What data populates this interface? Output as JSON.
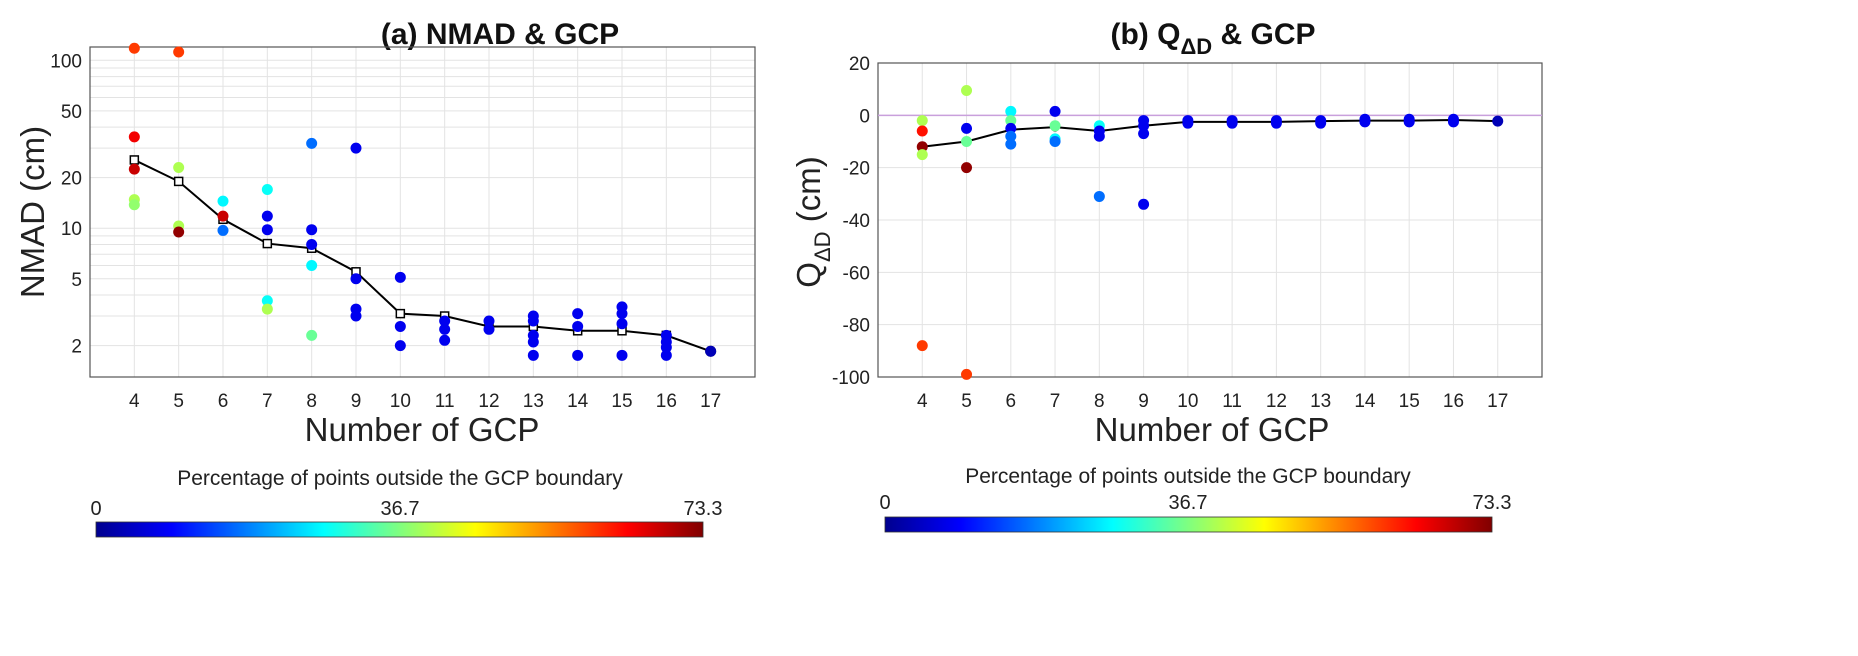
{
  "chart_data": [
    {
      "type": "scatter",
      "title": "(a) NMAD & GCP",
      "xlabel": "Number of GCP",
      "ylabel": "NMAD (cm)",
      "yscale": "log",
      "xlim": [
        3,
        18
      ],
      "ylim": [
        1.3,
        120
      ],
      "xticks": [
        "4",
        "5",
        "6",
        "7",
        "8",
        "9",
        "10",
        "11",
        "12",
        "13",
        "14",
        "15",
        "16",
        "17"
      ],
      "yticks": [
        "2",
        "5",
        "10",
        "20",
        "50",
        "100"
      ],
      "grid": true,
      "points": [
        {
          "x": 4,
          "y": 118,
          "c": 60
        },
        {
          "x": 4,
          "y": 35,
          "c": 65
        },
        {
          "x": 4,
          "y": 22.5,
          "c": 68
        },
        {
          "x": 4,
          "y": 14.8,
          "c": 40
        },
        {
          "x": 4,
          "y": 13.8,
          "c": 38
        },
        {
          "x": 5,
          "y": 112,
          "c": 60
        },
        {
          "x": 5,
          "y": 23,
          "c": 40
        },
        {
          "x": 5,
          "y": 10.3,
          "c": 40
        },
        {
          "x": 5,
          "y": 9.5,
          "c": 72
        },
        {
          "x": 6,
          "y": 14.5,
          "c": 27
        },
        {
          "x": 6,
          "y": 11.8,
          "c": 68
        },
        {
          "x": 6,
          "y": 9.7,
          "c": 17
        },
        {
          "x": 7,
          "y": 17,
          "c": 28
        },
        {
          "x": 7,
          "y": 11.8,
          "c": 8
        },
        {
          "x": 7,
          "y": 9.8,
          "c": 8
        },
        {
          "x": 7,
          "y": 3.7,
          "c": 28
        },
        {
          "x": 7,
          "y": 3.3,
          "c": 40
        },
        {
          "x": 8,
          "y": 32,
          "c": 17
        },
        {
          "x": 8,
          "y": 9.8,
          "c": 8
        },
        {
          "x": 8,
          "y": 8,
          "c": 8
        },
        {
          "x": 8,
          "y": 6,
          "c": 27
        },
        {
          "x": 8,
          "y": 2.3,
          "c": 35
        },
        {
          "x": 9,
          "y": 30,
          "c": 8
        },
        {
          "x": 9,
          "y": 5,
          "c": 8
        },
        {
          "x": 9,
          "y": 3.3,
          "c": 8
        },
        {
          "x": 9,
          "y": 3,
          "c": 8
        },
        {
          "x": 10,
          "y": 5.1,
          "c": 8
        },
        {
          "x": 10,
          "y": 2.6,
          "c": 8
        },
        {
          "x": 10,
          "y": 2,
          "c": 8
        },
        {
          "x": 11,
          "y": 2.8,
          "c": 8
        },
        {
          "x": 11,
          "y": 2.5,
          "c": 8
        },
        {
          "x": 11,
          "y": 2.15,
          "c": 8
        },
        {
          "x": 12,
          "y": 2.8,
          "c": 8
        },
        {
          "x": 12,
          "y": 2.5,
          "c": 8
        },
        {
          "x": 13,
          "y": 3,
          "c": 8
        },
        {
          "x": 13,
          "y": 2.8,
          "c": 8
        },
        {
          "x": 13,
          "y": 2.3,
          "c": 8
        },
        {
          "x": 13,
          "y": 2.1,
          "c": 8
        },
        {
          "x": 13,
          "y": 1.75,
          "c": 8
        },
        {
          "x": 14,
          "y": 3.1,
          "c": 8
        },
        {
          "x": 14,
          "y": 2.6,
          "c": 8
        },
        {
          "x": 14,
          "y": 1.75,
          "c": 8
        },
        {
          "x": 15,
          "y": 3.4,
          "c": 8
        },
        {
          "x": 15,
          "y": 3.1,
          "c": 8
        },
        {
          "x": 15,
          "y": 2.7,
          "c": 8
        },
        {
          "x": 15,
          "y": 1.75,
          "c": 8
        },
        {
          "x": 16,
          "y": 2.3,
          "c": 8
        },
        {
          "x": 16,
          "y": 2.1,
          "c": 8
        },
        {
          "x": 16,
          "y": 1.95,
          "c": 8
        },
        {
          "x": 16,
          "y": 1.75,
          "c": 8
        },
        {
          "x": 17,
          "y": 1.85,
          "c": 4
        }
      ],
      "line": {
        "x": [
          4,
          5,
          6,
          7,
          8,
          9,
          10,
          11,
          12,
          13,
          14,
          15,
          16,
          17
        ],
        "y": [
          25.5,
          19,
          11.3,
          8.1,
          7.6,
          5.5,
          3.1,
          3.0,
          2.6,
          2.6,
          2.45,
          2.45,
          2.3,
          1.85
        ]
      }
    },
    {
      "type": "scatter",
      "title": "(b) Q",
      "title_sub": "ΔD",
      "title_suffix": " & GCP",
      "xlabel": "Number of GCP",
      "ylabel": "Q",
      "ylabel_sub": "ΔD",
      "ylabel_suffix": " (cm)",
      "xlim": [
        3,
        18
      ],
      "ylim": [
        -100,
        20
      ],
      "xticks": [
        "4",
        "5",
        "6",
        "7",
        "8",
        "9",
        "10",
        "11",
        "12",
        "13",
        "14",
        "15",
        "16",
        "17"
      ],
      "yticks": [
        "-100",
        "-80",
        "-60",
        "-40",
        "-20",
        "0",
        "20"
      ],
      "grid": true,
      "points": [
        {
          "x": 4,
          "y": -2,
          "c": 40
        },
        {
          "x": 4,
          "y": -6,
          "c": 63
        },
        {
          "x": 4,
          "y": -12,
          "c": 72
        },
        {
          "x": 4,
          "y": -15,
          "c": 40
        },
        {
          "x": 4,
          "y": -88,
          "c": 60
        },
        {
          "x": 5,
          "y": 9.5,
          "c": 40
        },
        {
          "x": 5,
          "y": -5,
          "c": 8
        },
        {
          "x": 5,
          "y": -10,
          "c": 35
        },
        {
          "x": 5,
          "y": -20,
          "c": 72
        },
        {
          "x": 5,
          "y": -99,
          "c": 60
        },
        {
          "x": 6,
          "y": 1.5,
          "c": 27
        },
        {
          "x": 6,
          "y": -2,
          "c": 35
        },
        {
          "x": 6,
          "y": -5,
          "c": 8
        },
        {
          "x": 6,
          "y": -8,
          "c": 17
        },
        {
          "x": 6,
          "y": -11,
          "c": 17
        },
        {
          "x": 7,
          "y": 1.5,
          "c": 8
        },
        {
          "x": 7,
          "y": -4,
          "c": 35
        },
        {
          "x": 7,
          "y": -9,
          "c": 27
        },
        {
          "x": 7,
          "y": -10,
          "c": 17
        },
        {
          "x": 8,
          "y": -4,
          "c": 28
        },
        {
          "x": 8,
          "y": -6,
          "c": 8
        },
        {
          "x": 8,
          "y": -8,
          "c": 8
        },
        {
          "x": 8,
          "y": -31,
          "c": 17
        },
        {
          "x": 9,
          "y": -2,
          "c": 8
        },
        {
          "x": 9,
          "y": -4,
          "c": 8
        },
        {
          "x": 9,
          "y": -7,
          "c": 8
        },
        {
          "x": 9,
          "y": -34,
          "c": 8
        },
        {
          "x": 10,
          "y": -2,
          "c": 8
        },
        {
          "x": 10,
          "y": -3,
          "c": 8
        },
        {
          "x": 11,
          "y": -2,
          "c": 8
        },
        {
          "x": 11,
          "y": -3,
          "c": 8
        },
        {
          "x": 12,
          "y": -2,
          "c": 8
        },
        {
          "x": 12,
          "y": -3,
          "c": 8
        },
        {
          "x": 13,
          "y": -2,
          "c": 8
        },
        {
          "x": 13,
          "y": -3,
          "c": 8
        },
        {
          "x": 14,
          "y": -1.5,
          "c": 8
        },
        {
          "x": 14,
          "y": -2.5,
          "c": 8
        },
        {
          "x": 15,
          "y": -1.5,
          "c": 8
        },
        {
          "x": 15,
          "y": -2.5,
          "c": 8
        },
        {
          "x": 16,
          "y": -1.5,
          "c": 8
        },
        {
          "x": 16,
          "y": -2.5,
          "c": 8
        },
        {
          "x": 17,
          "y": -2.2,
          "c": 4
        }
      ],
      "line": {
        "x": [
          4,
          5,
          6,
          7,
          8,
          9,
          10,
          11,
          12,
          13,
          14,
          15,
          16,
          17
        ],
        "y": [
          -12,
          -10,
          -5.5,
          -4.5,
          -6,
          -4,
          -2.5,
          -2.5,
          -2.5,
          -2.2,
          -2,
          -2,
          -1.8,
          -2.2
        ]
      }
    }
  ],
  "colorbar": {
    "title": "Percentage of points outside the GCP boundary",
    "min_label": "0",
    "mid_label": "36.7",
    "max_label": "73.3",
    "min": 0,
    "max": 73.3,
    "colormap": "jet"
  }
}
